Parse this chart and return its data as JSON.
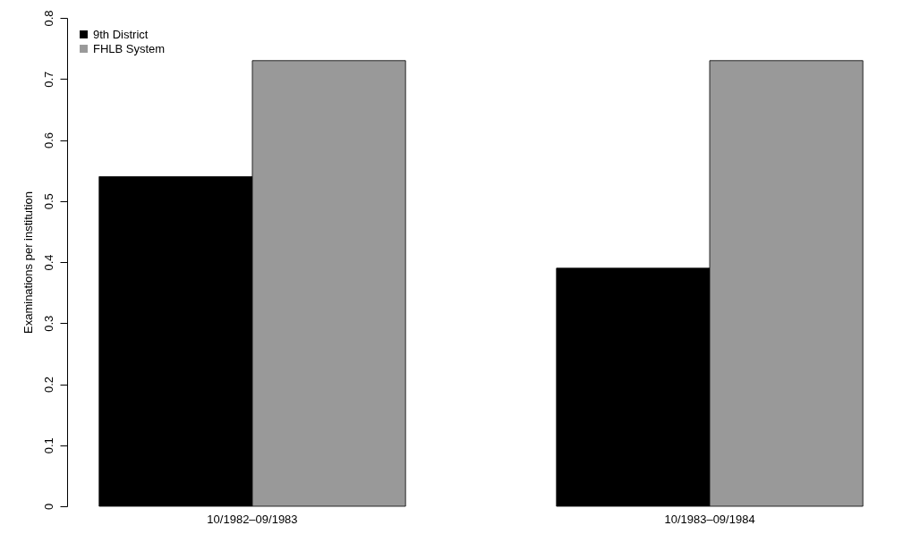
{
  "chart_data": {
    "type": "bar",
    "ylabel": "Examinations per institution",
    "categories": [
      "10/1982–09/1983",
      "10/1983–09/1984"
    ],
    "series": [
      {
        "name": "9th District",
        "color": "#000000",
        "values": [
          0.54,
          0.39
        ]
      },
      {
        "name": "FHLB System",
        "color": "#999999",
        "values": [
          0.73,
          0.73
        ]
      }
    ],
    "ylim": [
      0,
      0.8
    ],
    "yticks": [
      0.0,
      0.1,
      0.2,
      0.3,
      0.4,
      0.5,
      0.6,
      0.7,
      0.8
    ],
    "grid": false,
    "legend": "top left"
  }
}
